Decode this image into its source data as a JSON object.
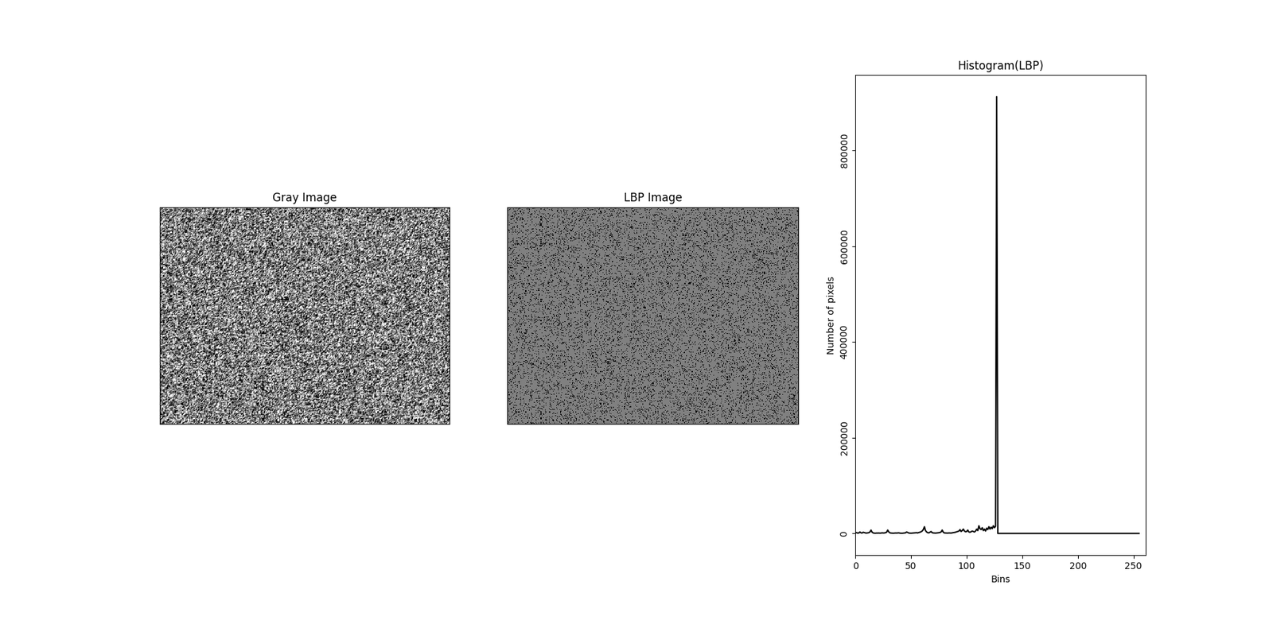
{
  "chart_data": [
    {
      "type": "image",
      "title": "Gray Image",
      "tick_labels": false
    },
    {
      "type": "image",
      "title": "LBP Image",
      "tick_labels": false
    },
    {
      "type": "line",
      "title": "Histogram(LBP)",
      "x_label": "Bins",
      "y_label": "Number of pixels",
      "color": "#000000",
      "xlim": [
        0,
        261
      ],
      "xticks": [
        0,
        50,
        100,
        150,
        200,
        250
      ],
      "ylim": [
        -45800,
        957600
      ],
      "yticks": [
        0,
        200000,
        400000,
        600000,
        800000
      ],
      "x": [
        0,
        1,
        2,
        3,
        4,
        5,
        6,
        7,
        8,
        9,
        10,
        11,
        12,
        13,
        14,
        15,
        16,
        17,
        18,
        19,
        20,
        21,
        22,
        23,
        24,
        25,
        26,
        27,
        28,
        29,
        30,
        31,
        32,
        33,
        34,
        35,
        36,
        37,
        38,
        39,
        40,
        41,
        42,
        43,
        44,
        45,
        46,
        47,
        48,
        49,
        50,
        51,
        52,
        53,
        54,
        55,
        56,
        57,
        58,
        59,
        60,
        61,
        62,
        63,
        64,
        65,
        66,
        67,
        68,
        69,
        70,
        71,
        72,
        73,
        74,
        75,
        76,
        77,
        78,
        79,
        80,
        81,
        82,
        83,
        84,
        85,
        86,
        87,
        88,
        89,
        90,
        91,
        92,
        93,
        94,
        95,
        96,
        97,
        98,
        99,
        100,
        101,
        102,
        103,
        104,
        105,
        106,
        107,
        108,
        109,
        110,
        111,
        112,
        113,
        114,
        115,
        116,
        117,
        118,
        119,
        120,
        121,
        122,
        123,
        124,
        125,
        126,
        127,
        128,
        129,
        130,
        131,
        132,
        133,
        134,
        135,
        136,
        137,
        138,
        139,
        140,
        141,
        142,
        143,
        144,
        145,
        146,
        147,
        148,
        149,
        150,
        151,
        152,
        153,
        154,
        155,
        156,
        157,
        158,
        159,
        160,
        161,
        162,
        163,
        164,
        165,
        166,
        167,
        168,
        169,
        170,
        171,
        172,
        173,
        174,
        175,
        176,
        177,
        178,
        179,
        180,
        181,
        182,
        183,
        184,
        185,
        186,
        187,
        188,
        189,
        190,
        191,
        192,
        193,
        194,
        195,
        196,
        197,
        198,
        199,
        200,
        201,
        202,
        203,
        204,
        205,
        206,
        207,
        208,
        209,
        210,
        211,
        212,
        213,
        214,
        215,
        216,
        217,
        218,
        219,
        220,
        221,
        222,
        223,
        224,
        225,
        226,
        227,
        228,
        229,
        230,
        231,
        232,
        233,
        234,
        235,
        236,
        237,
        238,
        239,
        240,
        241,
        242,
        243,
        244,
        245,
        246,
        247,
        248,
        249,
        250,
        251,
        252,
        253,
        254,
        255
      ],
      "values": [
        2000,
        1500,
        800,
        1000,
        3000,
        1200,
        900,
        2500,
        1800,
        1000,
        800,
        1200,
        1500,
        3000,
        7000,
        2500,
        1000,
        600,
        500,
        800,
        700,
        900,
        600,
        800,
        1200,
        900,
        1000,
        1500,
        2500,
        7000,
        3000,
        1200,
        800,
        600,
        500,
        700,
        900,
        800,
        1000,
        1200,
        600,
        500,
        400,
        700,
        900,
        1200,
        3000,
        2000,
        800,
        600,
        500,
        700,
        900,
        1000,
        1200,
        1500,
        1000,
        2000,
        2500,
        3500,
        5000,
        8000,
        14000,
        6000,
        3000,
        1500,
        1200,
        2500,
        4000,
        1500,
        1000,
        800,
        700,
        900,
        1200,
        1500,
        2000,
        3000,
        7000,
        2500,
        1000,
        900,
        800,
        700,
        1000,
        900,
        800,
        1200,
        1500,
        2000,
        2500,
        3500,
        4000,
        5000,
        8000,
        4000,
        6000,
        9000,
        5000,
        3500,
        4000,
        7000,
        3000,
        2500,
        3500,
        5000,
        4000,
        3000,
        5000,
        9000,
        6000,
        16000,
        10000,
        8000,
        12000,
        6000,
        9000,
        5000,
        11000,
        8000,
        14000,
        9000,
        13000,
        10000,
        16000,
        12000,
        15000,
        912000,
        0,
        0,
        0,
        0,
        0,
        0,
        0,
        0,
        0,
        0,
        0,
        0,
        0,
        0,
        0,
        0,
        0,
        0,
        0,
        0,
        0,
        0,
        0,
        0,
        0,
        0,
        0,
        0,
        0,
        0,
        0,
        0,
        0,
        0,
        0,
        0,
        0,
        0,
        0,
        0,
        0,
        0,
        0,
        0,
        0,
        0,
        0,
        0,
        0,
        0,
        0,
        0,
        0,
        0,
        0,
        0,
        0,
        0,
        0,
        0,
        0,
        0,
        0,
        0,
        0,
        0,
        0,
        0,
        0,
        0,
        0,
        0,
        0,
        0,
        0,
        0,
        0,
        0,
        0,
        0,
        0,
        0,
        0,
        0,
        0,
        0,
        0,
        0,
        0,
        0,
        0,
        0,
        0,
        0,
        0,
        0,
        0,
        0,
        0,
        0,
        0,
        0,
        0,
        0,
        0,
        0,
        0,
        0,
        0,
        0,
        0,
        0,
        0,
        0,
        0,
        0,
        0,
        0,
        0,
        0,
        0,
        0,
        0,
        0,
        0,
        0,
        0,
        0
      ]
    }
  ]
}
